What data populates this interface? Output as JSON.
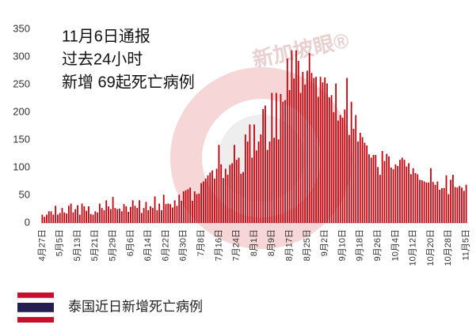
{
  "chart_data": {
    "type": "bar",
    "annotations": [
      "11月6日通报",
      "过去24小时",
      "新增 69起死亡病例"
    ],
    "caption": "泰国近日新增死亡病例",
    "watermark": "新加坡眼®",
    "color": "#c0000b",
    "ylim": [
      0,
      350
    ],
    "yticks": [
      0,
      50,
      100,
      150,
      200,
      250,
      300,
      350
    ],
    "categories": [
      "4月27日",
      null,
      null,
      null,
      null,
      null,
      null,
      null,
      "5月5日",
      null,
      null,
      null,
      null,
      null,
      null,
      null,
      "5月13日",
      null,
      null,
      null,
      null,
      null,
      null,
      null,
      "5月21日",
      null,
      null,
      null,
      null,
      null,
      null,
      null,
      "5月29日",
      null,
      null,
      null,
      null,
      null,
      null,
      null,
      "6月6日",
      null,
      null,
      null,
      null,
      null,
      null,
      null,
      "6月14日",
      null,
      null,
      null,
      null,
      null,
      null,
      null,
      "6月22日",
      null,
      null,
      null,
      null,
      null,
      null,
      null,
      "6月30日",
      null,
      null,
      null,
      null,
      null,
      null,
      null,
      "7月8日",
      null,
      null,
      null,
      null,
      null,
      null,
      null,
      "7月16日",
      null,
      null,
      null,
      null,
      null,
      null,
      null,
      "7月24日",
      null,
      null,
      null,
      null,
      null,
      null,
      null,
      "8月1日",
      null,
      null,
      null,
      null,
      null,
      null,
      null,
      "8月9日",
      null,
      null,
      null,
      null,
      null,
      null,
      null,
      "8月17日",
      null,
      null,
      null,
      null,
      null,
      null,
      null,
      "8月25日",
      null,
      null,
      null,
      null,
      null,
      null,
      null,
      "9月2日",
      null,
      null,
      null,
      null,
      null,
      null,
      null,
      "9月10日",
      null,
      null,
      null,
      null,
      null,
      null,
      null,
      "9月18日",
      null,
      null,
      null,
      null,
      null,
      null,
      null,
      "9月26日",
      null,
      null,
      null,
      null,
      null,
      null,
      null,
      "10月4日",
      null,
      null,
      null,
      null,
      null,
      null,
      null,
      "10月12日",
      null,
      null,
      null,
      null,
      null,
      null,
      null,
      "10月20日",
      null,
      null,
      null,
      null,
      null,
      null,
      null,
      "10月28日",
      null,
      null,
      null,
      null,
      null,
      null,
      null,
      "11月5日"
    ],
    "values": [
      15,
      11,
      15,
      21,
      21,
      15,
      31,
      15,
      18,
      27,
      19,
      17,
      31,
      35,
      19,
      25,
      32,
      15,
      35,
      30,
      22,
      30,
      16,
      15,
      21,
      19,
      35,
      27,
      23,
      41,
      30,
      25,
      47,
      27,
      25,
      26,
      21,
      34,
      30,
      20,
      29,
      41,
      31,
      27,
      41,
      18,
      27,
      38,
      23,
      30,
      27,
      48,
      23,
      35,
      23,
      51,
      34,
      35,
      34,
      28,
      41,
      31,
      51,
      40,
      57,
      59,
      61,
      64,
      40,
      57,
      52,
      53,
      72,
      75,
      80,
      86,
      91,
      95,
      80,
      98,
      141,
      106,
      81,
      98,
      87,
      105,
      108,
      141,
      114,
      118,
      89,
      92,
      160,
      147,
      178,
      118,
      178,
      131,
      147,
      160,
      206,
      212,
      132,
      147,
      235,
      154,
      235,
      151,
      233,
      219,
      222,
      297,
      240,
      312,
      261,
      312,
      293,
      235,
      273,
      250,
      275,
      307,
      271,
      262,
      264,
      228,
      264,
      254,
      263,
      252,
      227,
      231,
      200,
      252,
      185,
      195,
      190,
      205,
      262,
      159,
      219,
      170,
      195,
      147,
      163,
      155,
      145,
      140,
      124,
      118,
      123,
      123,
      101,
      87,
      130,
      112,
      125,
      120,
      100,
      97,
      106,
      103,
      114,
      118,
      114,
      102,
      108,
      88,
      99,
      90,
      88,
      78,
      77,
      75,
      73,
      73,
      99,
      74,
      69,
      75,
      60,
      63,
      63,
      86,
      52,
      78,
      87,
      65,
      64,
      67,
      64,
      58,
      69
    ]
  }
}
